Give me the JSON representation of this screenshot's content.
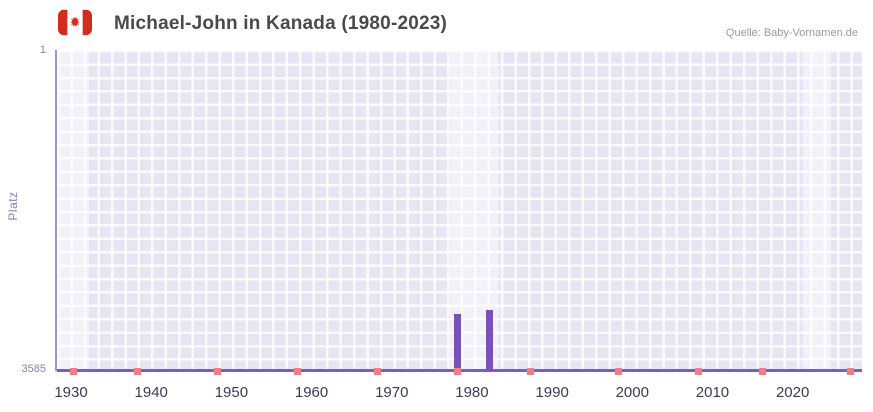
{
  "header": {
    "title": "Michael-John in Kanada (1980-2023)",
    "source": "Quelle: Baby-Vornamen.de"
  },
  "chart_data": {
    "type": "bar",
    "title": "Michael-John in Kanada (1980-2023)",
    "ylabel": "Platz",
    "y_axis": {
      "top_label": "1",
      "bottom_label": "3585",
      "min": 1,
      "max": 3585,
      "inverted": true
    },
    "x_axis": {
      "domain": [
        1928,
        2028.4
      ],
      "ticks": [
        1930,
        1940,
        1950,
        1960,
        1970,
        1980,
        1990,
        2000,
        2010,
        2020
      ]
    },
    "series": [
      {
        "name": "Platz",
        "points": [
          {
            "year": 1978,
            "rank": 2950
          },
          {
            "year": 1982,
            "rank": 2900
          }
        ]
      }
    ],
    "no_data_marker_years": [
      1930,
      1938,
      1948,
      1958,
      1968,
      1978,
      1987,
      1998,
      2008,
      2016,
      2027
    ],
    "highlight_bands": [
      [
        1928,
        1932
      ],
      [
        1977,
        1983
      ],
      [
        2021,
        2024.5
      ]
    ],
    "colors": {
      "bar": "#7952b3",
      "baseline": "#7360c8",
      "marker": "#ee7f88",
      "plot_bg": "#e7e5f4",
      "grid": "#ffffff",
      "axis_label": "#8a7fb5",
      "tick_label": "#3c3a58",
      "flag_red": "#d52b1e"
    }
  }
}
